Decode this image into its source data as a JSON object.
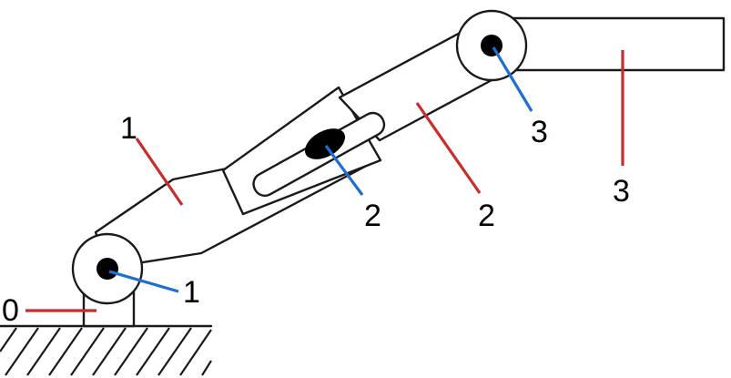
{
  "labels": {
    "link_0": "0",
    "link_1": "1",
    "link_2": "2",
    "link_3": "3",
    "joint_1": "1",
    "joint_2": "2",
    "joint_3": "3"
  },
  "colors": {
    "link_leader": "#cc2b2b",
    "joint_leader": "#1f6fd1",
    "outline": "#1a1a1a"
  }
}
